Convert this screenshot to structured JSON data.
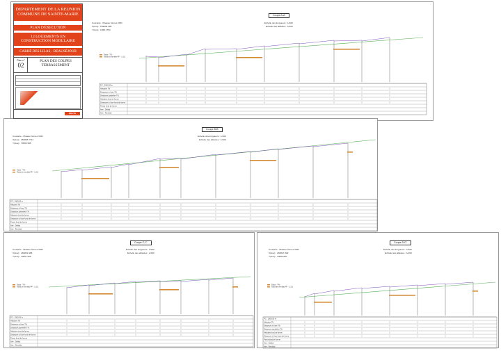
{
  "title_block": {
    "department": "DEPARTEMENT DE LA REUNION",
    "commune": "COMMUNE DE SAINTE-MARIE",
    "phase": "PLAN D'EXECUTION",
    "project_line1": "12 LOGEMENTS EN",
    "project_line2": "CONSTRUCTION MODULAIRE",
    "site": "CARRÉ DES LILAS - BEAUSÉJOUR",
    "plan_no_label": "Plan n°",
    "plan_no": "02",
    "plan_title_line1": "PLAN DES COUPES",
    "plan_title_line2": "TERRASSEMENT",
    "logo_text": "ROUTE"
  },
  "sections": [
    {
      "title": "Coupe A-A'",
      "info_lines": [
        "Courante - Plateau formes VRD",
        "X(Axe) : 169834.380",
        "Y(Axe) : 1068.1754"
      ],
      "scale_h": "Echelle des longueurs : 1/100",
      "scale_v": "Echelle des altitudes : 1/100",
      "legend": [
        "Talus - TN -",
        "Talus de remblai PF - 1:1.5"
      ],
      "rows": [
        "PC : 1000.00 m",
        "Altitudes TN",
        "Distances à l'axe TN",
        "Distances partielles TN",
        "Altitudes fond de forme",
        "Distances à l'axe fond de forme",
        "Points fond de forme",
        "Aire : Déblai",
        "Aire : Remblai"
      ]
    },
    {
      "title": "Coupe B-B'",
      "info_lines": [
        "Courante - Plateau formes VRD",
        "X(Axe) : 169845.7712",
        "Y(Axe) : 70952.995"
      ],
      "scale_h": "Echelle des longueurs : 1/100",
      "scale_v": "Echelle des altitudes : 1/100",
      "legend": [
        "Talus - TN -",
        "Talus de remblai PF - 1:1.5"
      ],
      "rows": [
        "PC : 1000.00 m",
        "Altitudes TN",
        "Distances à l'axe TN",
        "Distances partielles TN",
        "Altitudes fond de forme",
        "Distances à l'axe fond de forme",
        "Points fond de forme",
        "Aire : Déblai",
        "Aire : Remblai"
      ]
    },
    {
      "title": "Coupe C-C'",
      "info_lines": [
        "Courante - Plateau formes VRD",
        "X(Axe) : 169841.998",
        "Y(Axe) : 70567.929"
      ],
      "scale_h": "Echelle des longueurs : 1/100",
      "scale_v": "Echelle des altitudes : 1/100",
      "legend": [
        "Talus - TN -",
        "Talus de remblai PF - 1:1.5"
      ],
      "rows": [
        "PC : 1000.00 m",
        "Altitudes TN",
        "Distances à l'axe TN",
        "Distances partielles TN",
        "Altitudes fond de forme",
        "Distances à l'axe fond de forme",
        "Points fond de forme",
        "Aire : Déblai",
        "Aire : Remblai"
      ]
    },
    {
      "title": "Coupe D-D'",
      "info_lines": [
        "Courante - Plateau formes VRD",
        "X(Axe) : 169847.329",
        "Y(Axe) : 70553.897"
      ],
      "scale_h": "Echelle des longueurs : 1/100",
      "scale_v": "Echelle des altitudes : 1/100",
      "legend": [
        "Talus - TN -",
        "Talus de remblai PF - 1:1.5"
      ],
      "rows": [
        "PC : 1000.00 m",
        "Altitudes TN",
        "Distances à l'axe TN",
        "Distances partielles TN",
        "Altitudes fond de forme",
        "Distances à l'axe fond de forme",
        "Points fond de forme",
        "Aire : Déblai",
        "Aire : Remblai"
      ]
    }
  ],
  "colors": {
    "red": "#e2431a",
    "ground": "#55b055",
    "structure": "#7a52b8",
    "fill": "#d38a32"
  }
}
